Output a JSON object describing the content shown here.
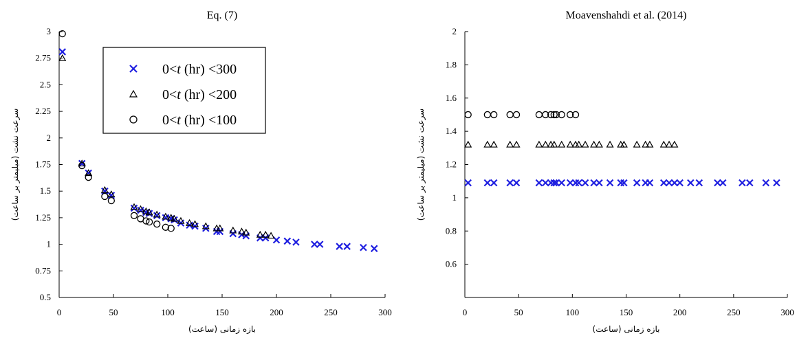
{
  "chart_data": [
    {
      "type": "scatter",
      "title": "Eq. (7)",
      "xlabel": "بازه زمانی (ساعت)",
      "ylabel": "سرعت نشت (میلیمتر بر ساعت)",
      "xlim": [
        0,
        300
      ],
      "ylim": [
        0.5,
        3
      ],
      "xticks": [
        0,
        50,
        100,
        150,
        200,
        250,
        300
      ],
      "yticks": [
        0.5,
        0.75,
        1,
        1.25,
        1.5,
        1.75,
        2,
        2.25,
        2.5,
        2.75,
        3
      ],
      "grid": false,
      "legend_position": "top-left",
      "series": [
        {
          "name": "0<t (hr) <300",
          "legend_pre": "0<",
          "legend_var": "t",
          "legend_post": " (hr) <300",
          "marker": "x",
          "color": "#1f1fe0",
          "points": [
            [
              3,
              2.81
            ],
            [
              21,
              1.76
            ],
            [
              27,
              1.67
            ],
            [
              42,
              1.5
            ],
            [
              48,
              1.46
            ],
            [
              69,
              1.34
            ],
            [
              75,
              1.32
            ],
            [
              80,
              1.3
            ],
            [
              83,
              1.29
            ],
            [
              90,
              1.27
            ],
            [
              98,
              1.25
            ],
            [
              103,
              1.24
            ],
            [
              106,
              1.23
            ],
            [
              112,
              1.2
            ],
            [
              120,
              1.18
            ],
            [
              125,
              1.17
            ],
            [
              135,
              1.15
            ],
            [
              145,
              1.12
            ],
            [
              148,
              1.12
            ],
            [
              160,
              1.1
            ],
            [
              168,
              1.09
            ],
            [
              172,
              1.08
            ],
            [
              185,
              1.06
            ],
            [
              190,
              1.06
            ],
            [
              200,
              1.04
            ],
            [
              210,
              1.03
            ],
            [
              218,
              1.02
            ],
            [
              235,
              1.0
            ],
            [
              240,
              1.0
            ],
            [
              258,
              0.98
            ],
            [
              265,
              0.98
            ],
            [
              280,
              0.97
            ],
            [
              290,
              0.96
            ]
          ]
        },
        {
          "name": "0<t (hr) <200",
          "legend_pre": "0<",
          "legend_var": "t",
          "legend_post": " (hr) <200",
          "marker": "triangle",
          "color": "#000000",
          "points": [
            [
              3,
              2.75
            ],
            [
              21,
              1.76
            ],
            [
              27,
              1.67
            ],
            [
              42,
              1.51
            ],
            [
              48,
              1.47
            ],
            [
              69,
              1.35
            ],
            [
              75,
              1.33
            ],
            [
              80,
              1.31
            ],
            [
              83,
              1.3
            ],
            [
              90,
              1.28
            ],
            [
              98,
              1.26
            ],
            [
              103,
              1.25
            ],
            [
              106,
              1.24
            ],
            [
              112,
              1.22
            ],
            [
              120,
              1.2
            ],
            [
              125,
              1.19
            ],
            [
              135,
              1.17
            ],
            [
              145,
              1.15
            ],
            [
              148,
              1.15
            ],
            [
              160,
              1.13
            ],
            [
              168,
              1.12
            ],
            [
              172,
              1.11
            ],
            [
              185,
              1.09
            ],
            [
              190,
              1.09
            ],
            [
              195,
              1.08
            ]
          ]
        },
        {
          "name": "0<t (hr) <100",
          "legend_pre": "0<",
          "legend_var": "t",
          "legend_post": " (hr) <100",
          "marker": "circle",
          "color": "#000000",
          "points": [
            [
              3,
              2.98
            ],
            [
              21,
              1.74
            ],
            [
              27,
              1.63
            ],
            [
              42,
              1.45
            ],
            [
              48,
              1.41
            ],
            [
              69,
              1.27
            ],
            [
              75,
              1.24
            ],
            [
              80,
              1.22
            ],
            [
              83,
              1.21
            ],
            [
              90,
              1.19
            ],
            [
              98,
              1.16
            ],
            [
              103,
              1.15
            ]
          ]
        }
      ]
    },
    {
      "type": "scatter",
      "title": "Moavenshahdi et al. (2014)",
      "xlabel": "بازه زمانی (ساعت)",
      "ylabel": "سرعت نشت (میلیمتر بر ساعت)",
      "xlim": [
        0,
        300
      ],
      "ylim": [
        0.4,
        2
      ],
      "xticks": [
        0,
        50,
        100,
        150,
        200,
        250,
        300
      ],
      "yticks": [
        0.6,
        0.8,
        1,
        1.2,
        1.4,
        1.6,
        1.8,
        2
      ],
      "grid": false,
      "series": [
        {
          "marker": "x",
          "color": "#1f1fe0",
          "points": [
            [
              3,
              1.09
            ],
            [
              21,
              1.09
            ],
            [
              27,
              1.09
            ],
            [
              42,
              1.09
            ],
            [
              48,
              1.09
            ],
            [
              69,
              1.09
            ],
            [
              75,
              1.09
            ],
            [
              80,
              1.09
            ],
            [
              83,
              1.09
            ],
            [
              85,
              1.09
            ],
            [
              90,
              1.09
            ],
            [
              98,
              1.09
            ],
            [
              103,
              1.09
            ],
            [
              106,
              1.09
            ],
            [
              112,
              1.09
            ],
            [
              120,
              1.09
            ],
            [
              125,
              1.09
            ],
            [
              135,
              1.09
            ],
            [
              145,
              1.09
            ],
            [
              148,
              1.09
            ],
            [
              160,
              1.09
            ],
            [
              168,
              1.09
            ],
            [
              172,
              1.09
            ],
            [
              185,
              1.09
            ],
            [
              190,
              1.09
            ],
            [
              195,
              1.09
            ],
            [
              200,
              1.09
            ],
            [
              210,
              1.09
            ],
            [
              218,
              1.09
            ],
            [
              235,
              1.09
            ],
            [
              240,
              1.09
            ],
            [
              258,
              1.09
            ],
            [
              265,
              1.09
            ],
            [
              280,
              1.09
            ],
            [
              290,
              1.09
            ]
          ]
        },
        {
          "marker": "triangle",
          "color": "#000000",
          "points": [
            [
              3,
              1.32
            ],
            [
              21,
              1.32
            ],
            [
              27,
              1.32
            ],
            [
              42,
              1.32
            ],
            [
              48,
              1.32
            ],
            [
              69,
              1.32
            ],
            [
              75,
              1.32
            ],
            [
              80,
              1.32
            ],
            [
              83,
              1.32
            ],
            [
              90,
              1.32
            ],
            [
              98,
              1.32
            ],
            [
              103,
              1.32
            ],
            [
              106,
              1.32
            ],
            [
              112,
              1.32
            ],
            [
              120,
              1.32
            ],
            [
              125,
              1.32
            ],
            [
              135,
              1.32
            ],
            [
              145,
              1.32
            ],
            [
              148,
              1.32
            ],
            [
              160,
              1.32
            ],
            [
              168,
              1.32
            ],
            [
              172,
              1.32
            ],
            [
              185,
              1.32
            ],
            [
              190,
              1.32
            ],
            [
              195,
              1.32
            ]
          ]
        },
        {
          "marker": "circle",
          "color": "#000000",
          "points": [
            [
              3,
              1.5
            ],
            [
              21,
              1.5
            ],
            [
              27,
              1.5
            ],
            [
              42,
              1.5
            ],
            [
              48,
              1.5
            ],
            [
              69,
              1.5
            ],
            [
              75,
              1.5
            ],
            [
              80,
              1.5
            ],
            [
              83,
              1.5
            ],
            [
              85,
              1.5
            ],
            [
              90,
              1.5
            ],
            [
              98,
              1.5
            ],
            [
              103,
              1.5
            ]
          ]
        }
      ]
    }
  ]
}
